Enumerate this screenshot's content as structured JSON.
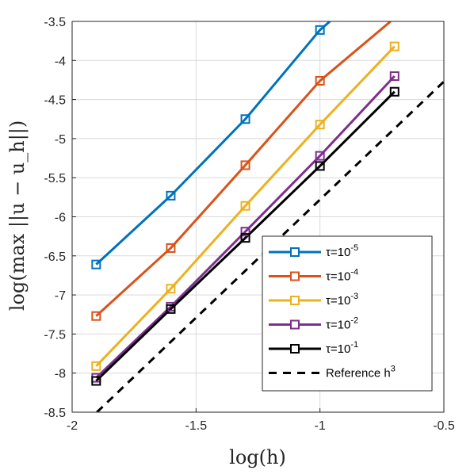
{
  "chart_data": {
    "type": "line",
    "xlabel": "log(h)",
    "ylabel": "log(max ||u − u_h||)",
    "xlim": [
      -2,
      -0.5
    ],
    "ylim": [
      -8.5,
      -3.5
    ],
    "xticks": [
      -2,
      -1.5,
      -1,
      -0.5
    ],
    "yticks": [
      -3.5,
      -4,
      -4.5,
      -5,
      -5.5,
      -6,
      -6.5,
      -7,
      -7.5,
      -8,
      -8.5
    ],
    "xtick_labels": [
      "-2",
      "-1.5",
      "-1",
      "-0.5"
    ],
    "ytick_labels": [
      "-3.5",
      "-4",
      "-4.5",
      "-5",
      "-5.5",
      "-6",
      "-6.5",
      "-7",
      "-7.5",
      "-8",
      "-8.5"
    ],
    "grid": true,
    "legend_position": "bottom-right",
    "series": [
      {
        "name": "τ=10^-5",
        "legend_base": "τ=10",
        "legend_exp": "-5",
        "color": "#0072BD",
        "marker": "square",
        "x": [
          -1.903,
          -1.602,
          -1.301,
          -1.0
        ],
        "y": [
          -6.61,
          -5.73,
          -4.75,
          -3.61
        ],
        "line_end": [
          -0.96,
          -3.5
        ]
      },
      {
        "name": "τ=10^-4",
        "legend_base": "τ=10",
        "legend_exp": "-4",
        "color": "#D95319",
        "marker": "square",
        "x": [
          -1.903,
          -1.602,
          -1.301,
          -1.0
        ],
        "y": [
          -7.27,
          -6.4,
          -5.34,
          -4.26
        ],
        "line_end": [
          -0.715,
          -3.5
        ]
      },
      {
        "name": "τ=10^-3",
        "legend_base": "τ=10",
        "legend_exp": "-3",
        "color": "#EDB120",
        "marker": "square",
        "x": [
          -1.903,
          -1.602,
          -1.301,
          -1.0,
          -0.699
        ],
        "y": [
          -7.91,
          -6.92,
          -5.86,
          -4.82,
          -3.82
        ]
      },
      {
        "name": "τ=10^-2",
        "legend_base": "τ=10",
        "legend_exp": "-2",
        "color": "#7E2F8E",
        "marker": "square",
        "x": [
          -1.903,
          -1.602,
          -1.301,
          -1.0,
          -0.699
        ],
        "y": [
          -8.06,
          -7.15,
          -6.19,
          -5.22,
          -4.2
        ]
      },
      {
        "name": "τ=10^-1",
        "legend_base": "τ=10",
        "legend_exp": "-1",
        "color": "#000000",
        "marker": "square",
        "x": [
          -1.903,
          -1.602,
          -1.301,
          -1.0,
          -0.699
        ],
        "y": [
          -8.1,
          -7.18,
          -6.27,
          -5.35,
          -4.4
        ]
      },
      {
        "name": "Reference h^3",
        "legend_base": "Reference h",
        "legend_exp": "3",
        "color": "#000000",
        "dashed": true,
        "marker": "none",
        "x": [
          -1.9,
          -0.5
        ],
        "y": [
          -8.5,
          -4.27
        ]
      }
    ]
  }
}
